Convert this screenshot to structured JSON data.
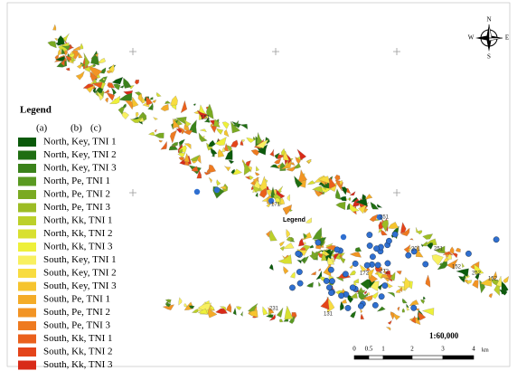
{
  "map": {
    "legend": {
      "title": "Legend",
      "columns": [
        "(a)",
        "(b)",
        "(c)"
      ],
      "items": [
        {
          "label": "North, Key, TNI 1",
          "color": "#0b5a0b"
        },
        {
          "label": "North, Key, TNI 2",
          "color": "#1f6e12"
        },
        {
          "label": "North, Key, TNI 3",
          "color": "#3a821a"
        },
        {
          "label": "North, Pe, TNI 1",
          "color": "#5a9a22"
        },
        {
          "label": "North, Pe, TNI 2",
          "color": "#7aaa22"
        },
        {
          "label": "North, Pe, TNI 3",
          "color": "#9cbc24"
        },
        {
          "label": "North, Kk, TNI 1",
          "color": "#bcd02a"
        },
        {
          "label": "North, Kk, TNI 2",
          "color": "#d8e030"
        },
        {
          "label": "North, Kk, TNI 3",
          "color": "#eef03a"
        },
        {
          "label": "South, Key, TNI 1",
          "color": "#f8f060"
        },
        {
          "label": "South, Key, TNI 2",
          "color": "#f8dc40"
        },
        {
          "label": "South, Key, TNI 3",
          "color": "#f6c42e"
        },
        {
          "label": "South, Pe, TNI 1",
          "color": "#f4ac28"
        },
        {
          "label": "South, Pe, TNI 2",
          "color": "#f29424"
        },
        {
          "label": "South, Pe, TNI 3",
          "color": "#ee7a20"
        },
        {
          "label": "South, Kk, TNI 1",
          "color": "#ea601c"
        },
        {
          "label": "South, Kk, TNI 2",
          "color": "#e4441a"
        },
        {
          "label": "South, Kk, TNI 3",
          "color": "#d82a18"
        }
      ]
    },
    "inset_label": "Legend",
    "scale_ratio": "1:60,000",
    "scale_bar": {
      "ticks": [
        "0",
        "0.5",
        "1",
        "2",
        "3",
        "4"
      ],
      "unit": "km"
    },
    "compass": {
      "n": "N",
      "s": "S",
      "e": "E",
      "w": "W"
    },
    "site_labels": [
      "151",
      "171",
      "251",
      "201",
      "251",
      "152",
      "252",
      "152",
      "172",
      "272",
      "231",
      "131"
    ]
  }
}
